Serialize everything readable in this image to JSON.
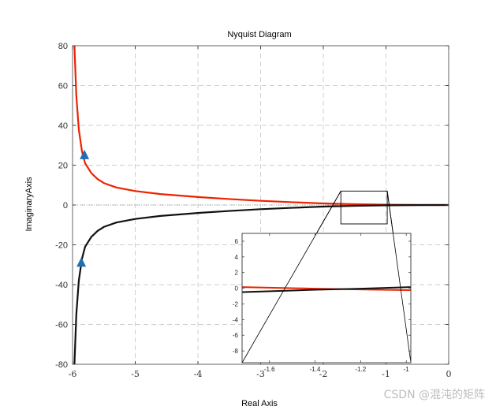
{
  "chart_data": {
    "type": "line",
    "title": "Nyquist Diagram",
    "xlabel": "Real Axis",
    "ylabel": "ImaginaryAxis",
    "xlim": [
      -6,
      0
    ],
    "ylim": [
      -80,
      80
    ],
    "xticks": [
      -6,
      -5,
      -4,
      -3,
      -2,
      -1,
      0
    ],
    "xtick_labels": [
      "-6",
      "-5",
      "-4",
      "-3",
      "-2",
      "-1",
      "0"
    ],
    "yticks": [
      80,
      60,
      40,
      20,
      0,
      -20,
      -40,
      -60,
      -80
    ],
    "ytick_labels": [
      "80",
      "60",
      "40",
      "20",
      "0",
      "-20",
      "-40",
      "-60",
      "-80"
    ],
    "grid": true,
    "series": [
      {
        "color": "#ee2200",
        "x": [
          -5.97,
          -5.94,
          -5.9,
          -5.85,
          -5.8,
          -5.7,
          -5.6,
          -5.5,
          -5.3,
          -5.0,
          -4.6,
          -4.0,
          -3.5,
          -3.0,
          -2.5,
          -2.0,
          -1.5,
          -1.0,
          -0.5,
          0.0
        ],
        "y": [
          80.0,
          55.0,
          38.0,
          27.0,
          21.0,
          16.0,
          13.0,
          11.0,
          8.8,
          7.0,
          5.5,
          4.0,
          3.0,
          2.1,
          1.4,
          0.8,
          0.4,
          0.15,
          0.05,
          0.0
        ]
      },
      {
        "color": "#111111",
        "x": [
          -5.97,
          -5.94,
          -5.9,
          -5.85,
          -5.8,
          -5.7,
          -5.6,
          -5.5,
          -5.3,
          -5.0,
          -4.6,
          -4.0,
          -3.5,
          -3.0,
          -2.5,
          -2.0,
          -1.5,
          -1.0,
          -0.5,
          0.0
        ],
        "y": [
          -80.0,
          -55.0,
          -38.0,
          -27.0,
          -21.0,
          -16.0,
          -13.0,
          -11.0,
          -8.8,
          -7.0,
          -5.5,
          -4.0,
          -3.0,
          -2.1,
          -1.4,
          -0.8,
          -0.4,
          -0.15,
          -0.05,
          0.0
        ]
      }
    ],
    "arrows": [
      {
        "x": -5.81,
        "y": 25,
        "color": "#1f6fb2"
      },
      {
        "x": -5.86,
        "y": -29,
        "color": "#1f6fb2"
      }
    ],
    "zoom_box": {
      "xlim": [
        -1.72,
        -0.98
      ],
      "ylim": [
        -9.5,
        7
      ]
    },
    "inset": {
      "xlim": [
        -1.72,
        -0.98
      ],
      "ylim": [
        -9.5,
        7
      ],
      "xticks": [
        -1.6,
        -1.4,
        -1.2,
        -1.0
      ],
      "xtick_labels": [
        "-1.6",
        "-1.4",
        "-1.2",
        "-1"
      ],
      "yticks": [
        6,
        4,
        2,
        0,
        -2,
        -4,
        -6,
        -8
      ],
      "ytick_labels": [
        "6",
        "4",
        "2",
        "0",
        "-2",
        "-4",
        "-6",
        "-8"
      ],
      "series": [
        {
          "color": "#ee2200",
          "x": [
            -1.72,
            -1.4,
            -1.2,
            -0.98
          ],
          "y": [
            0.15,
            -0.05,
            -0.15,
            -0.25
          ]
        },
        {
          "color": "#111111",
          "x": [
            -1.72,
            -1.4,
            -1.2,
            -0.98
          ],
          "y": [
            -0.5,
            -0.2,
            -0.05,
            0.15
          ]
        }
      ]
    }
  },
  "watermark": "CSDN @混沌的矩阵"
}
